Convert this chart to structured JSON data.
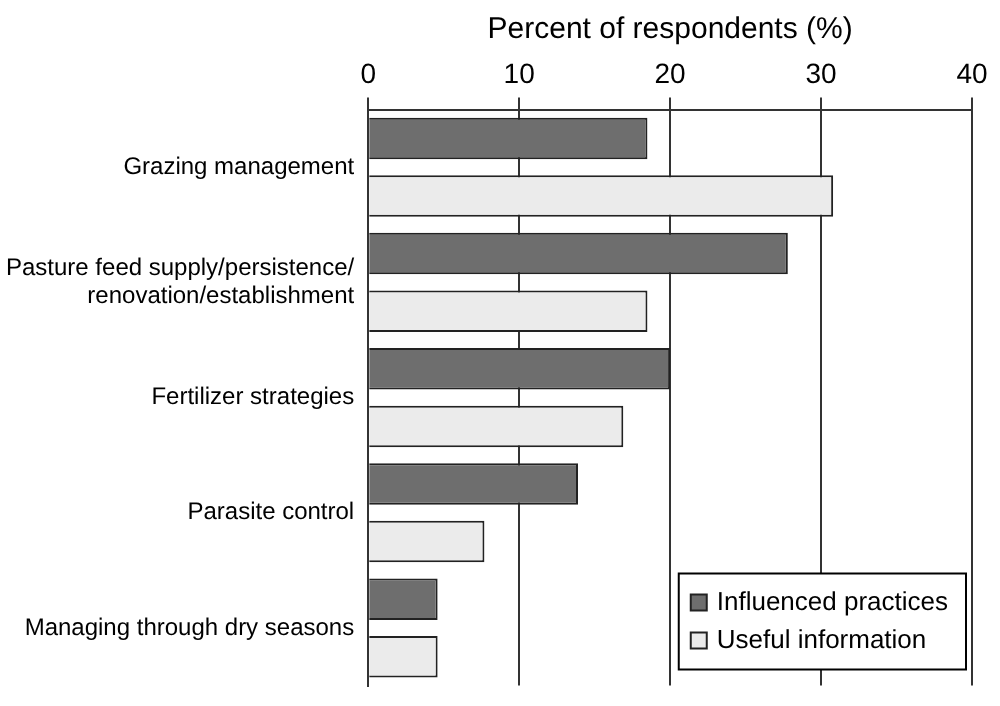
{
  "chart_data": {
    "type": "bar",
    "orientation": "horizontal",
    "xlabel": "Percent of respondents (%)",
    "categories": [
      "Grazing management",
      "Pasture feed supply/persistence/ renovation/establishment",
      "Fertilizer strategies",
      "Parasite control",
      "Managing through dry seasons"
    ],
    "series": [
      {
        "name": "Influenced practices",
        "color": "#6e6e6e",
        "values": [
          18.5,
          27.8,
          20.0,
          13.9,
          4.6
        ]
      },
      {
        "name": "Useful information",
        "color": "#ebebeb",
        "values": [
          30.8,
          18.5,
          16.9,
          7.7,
          4.6
        ]
      }
    ],
    "xlim": [
      0,
      40
    ],
    "xticks": [
      0,
      10,
      20,
      30,
      40
    ],
    "grid": "x",
    "legend": "bottom right"
  }
}
